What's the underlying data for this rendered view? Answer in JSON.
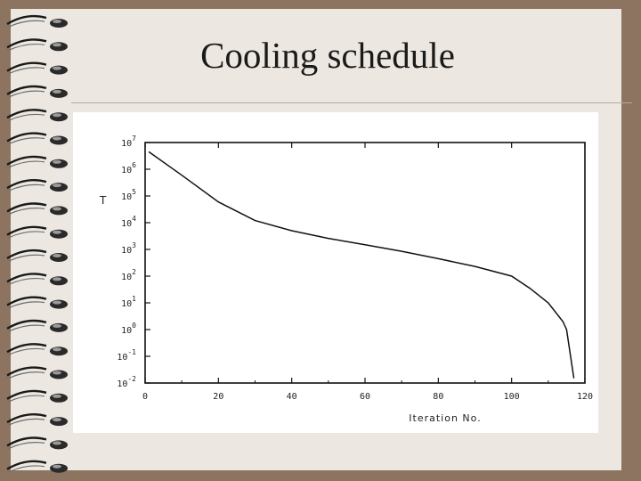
{
  "slide": {
    "title": "Cooling schedule"
  },
  "colors": {
    "frame": "#8c7461",
    "slide_background": "#ece8e1",
    "divider": "#b8a99c",
    "spiral_ring": "#1a1a1a"
  },
  "chart_data": {
    "type": "line",
    "title": "",
    "xlabel": "Iteration No.",
    "ylabel": "T",
    "xlim": [
      0,
      120
    ],
    "ylim": [
      0.01,
      10000000
    ],
    "y_scale": "log",
    "grid": false,
    "x_ticks": [
      "0",
      "20",
      "40",
      "60",
      "80",
      "100",
      "120"
    ],
    "y_ticks": [
      "10^7",
      "10^6",
      "10^5",
      "10^4",
      "10^3",
      "10^2",
      "10^1",
      "10^0",
      "10^-1",
      "10^-2"
    ],
    "series": [
      {
        "x": [
          1,
          10,
          20,
          30,
          40,
          50,
          60,
          70,
          80,
          90,
          100,
          105,
          110,
          114,
          115,
          117
        ],
        "y": [
          4500000,
          600000,
          60000,
          12000,
          5000,
          2600,
          1500,
          850,
          450,
          230,
          100,
          35,
          10,
          2,
          1,
          0.015
        ]
      }
    ]
  }
}
